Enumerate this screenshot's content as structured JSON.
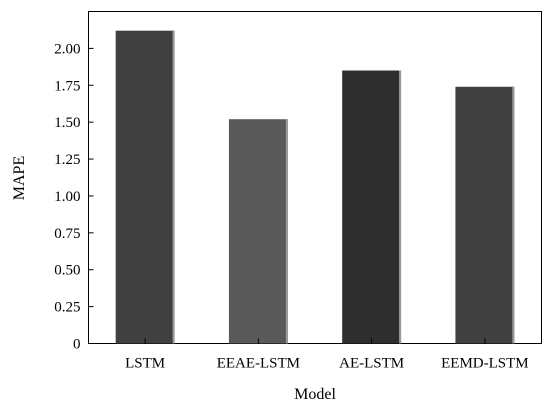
{
  "chart_data": {
    "type": "bar",
    "title": "",
    "xlabel": "Model",
    "ylabel": "MAPE",
    "categories": [
      "LSTM",
      "EEAE-LSTM",
      "AE-LSTM",
      "EEMD-LSTM"
    ],
    "values": [
      2.12,
      1.52,
      1.85,
      1.74
    ],
    "bar_colors": [
      "#404040",
      "#595959",
      "#2e2e2e",
      "#404040"
    ],
    "ylim": [
      0,
      2.25
    ],
    "yticks": [
      "0",
      "0.25",
      "0.50",
      "0.75",
      "1.00",
      "1.25",
      "1.50",
      "1.75",
      "2.00"
    ],
    "grid": false,
    "legend": "none"
  }
}
